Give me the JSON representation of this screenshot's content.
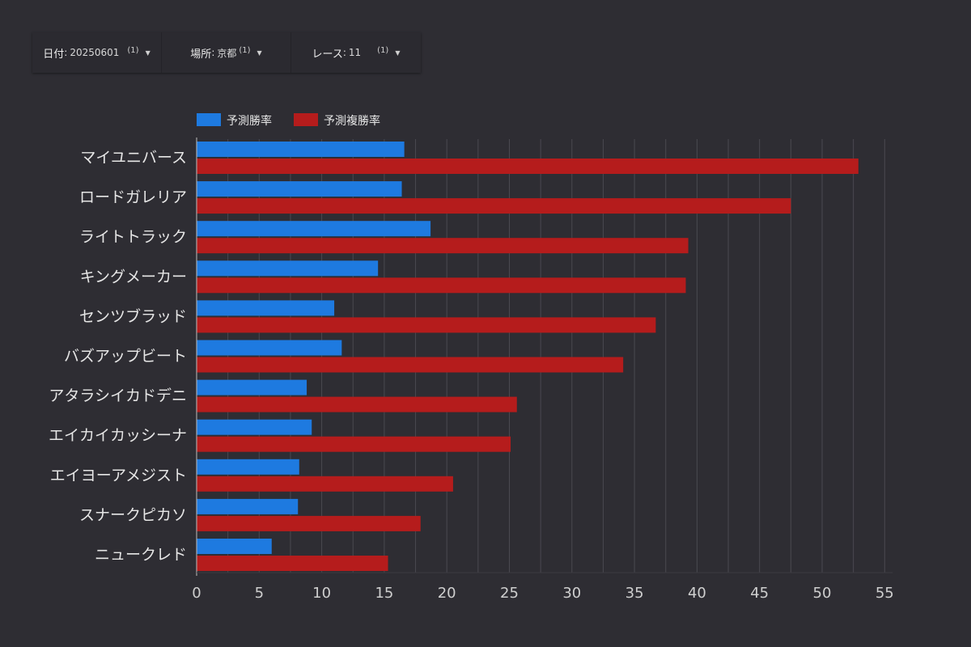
{
  "filters": [
    {
      "label": "日付",
      "value": "20250601",
      "count": "(1)"
    },
    {
      "label": "場所",
      "value": "京都",
      "count": "(1)"
    },
    {
      "label": "レース",
      "value": "11",
      "count": "(1)"
    }
  ],
  "colors": {
    "win": "#1e7ae0",
    "place": "#b51c1c",
    "grid": "#4a4950",
    "text": "#e6e6e6"
  },
  "chart_data": {
    "type": "bar",
    "orientation": "horizontal",
    "categories": [
      "マイユニバース",
      "ロードガレリア",
      "ライトトラック",
      "キングメーカー",
      "センツブラッド",
      "バズアップビート",
      "アタラシイカドデニ",
      "エイカイカッシーナ",
      "エイヨーアメジスト",
      "スナークピカソ",
      "ニュークレド"
    ],
    "series": [
      {
        "name": "予測勝率",
        "values": [
          16.6,
          16.4,
          18.7,
          14.5,
          11.0,
          11.6,
          8.8,
          9.2,
          8.2,
          8.1,
          6.0
        ]
      },
      {
        "name": "予測複勝率",
        "values": [
          52.9,
          47.5,
          39.3,
          39.1,
          36.7,
          34.1,
          25.6,
          25.1,
          20.5,
          17.9,
          15.3
        ]
      }
    ],
    "xticks": [
      "0",
      "5",
      "10",
      "15",
      "20",
      "25",
      "30",
      "35",
      "40",
      "45",
      "50",
      "55"
    ],
    "xlim": [
      0,
      55
    ],
    "grid": true,
    "legend": "top-left"
  }
}
